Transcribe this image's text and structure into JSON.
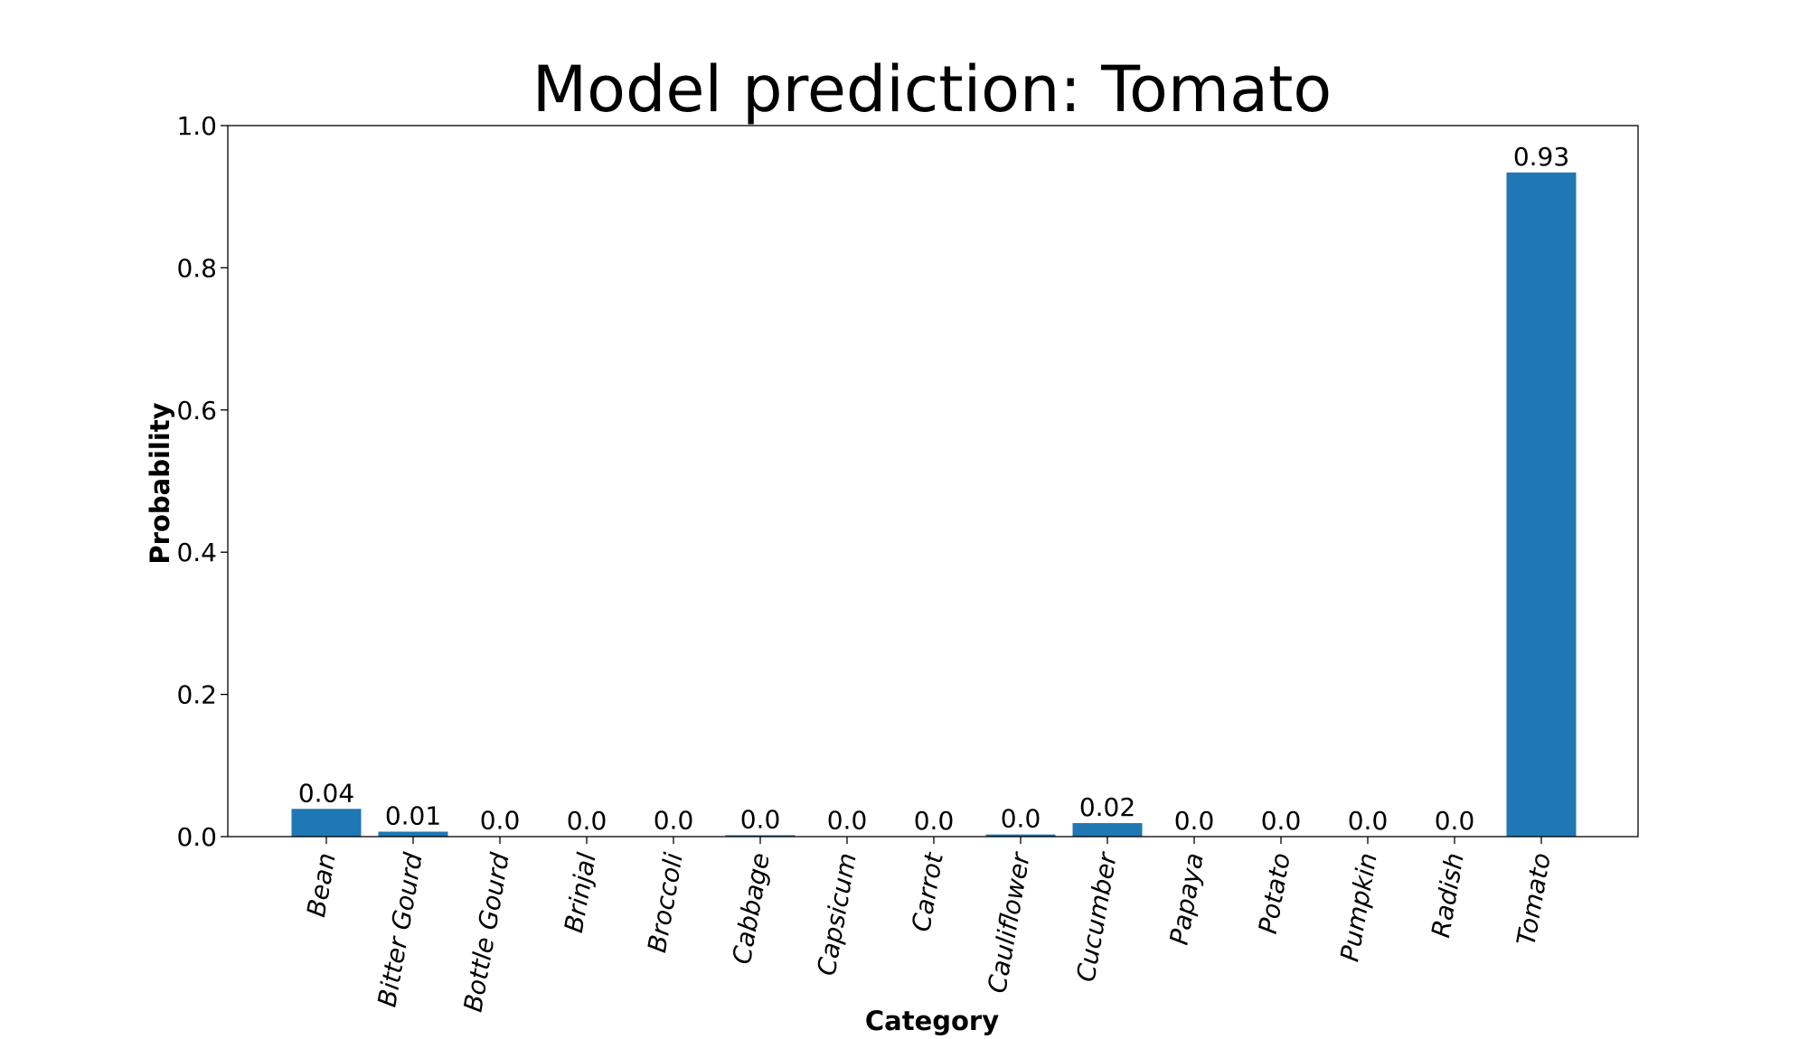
{
  "chart_data": {
    "type": "bar",
    "title": "Model prediction: Tomato",
    "xlabel": "Category",
    "ylabel": "Probability",
    "ylim": [
      0,
      1.0
    ],
    "yticks": [
      0.0,
      0.2,
      0.4,
      0.6,
      0.8,
      1.0
    ],
    "ytick_labels": [
      "0.0",
      "0.2",
      "0.4",
      "0.6",
      "0.8",
      "1.0"
    ],
    "categories": [
      "Bean",
      "Bitter Gourd",
      "Bottle Gourd",
      "Brinjal",
      "Broccoli",
      "Cabbage",
      "Capsicum",
      "Carrot",
      "Cauliflower",
      "Cucumber",
      "Papaya",
      "Potato",
      "Pumpkin",
      "Radish",
      "Tomato"
    ],
    "values": [
      0.039,
      0.007,
      0.0005,
      0.0003,
      0.0004,
      0.002,
      0.0004,
      0.0003,
      0.003,
      0.019,
      0.0003,
      0.0003,
      0.0003,
      0.0003,
      0.934
    ],
    "value_labels": [
      "0.04",
      "0.01",
      "0.0",
      "0.0",
      "0.0",
      "0.0",
      "0.0",
      "0.0",
      "0.0",
      "0.02",
      "0.0",
      "0.0",
      "0.0",
      "0.0",
      "0.93"
    ],
    "bar_color": "#1f77b4",
    "grid": false,
    "legend": "none"
  }
}
